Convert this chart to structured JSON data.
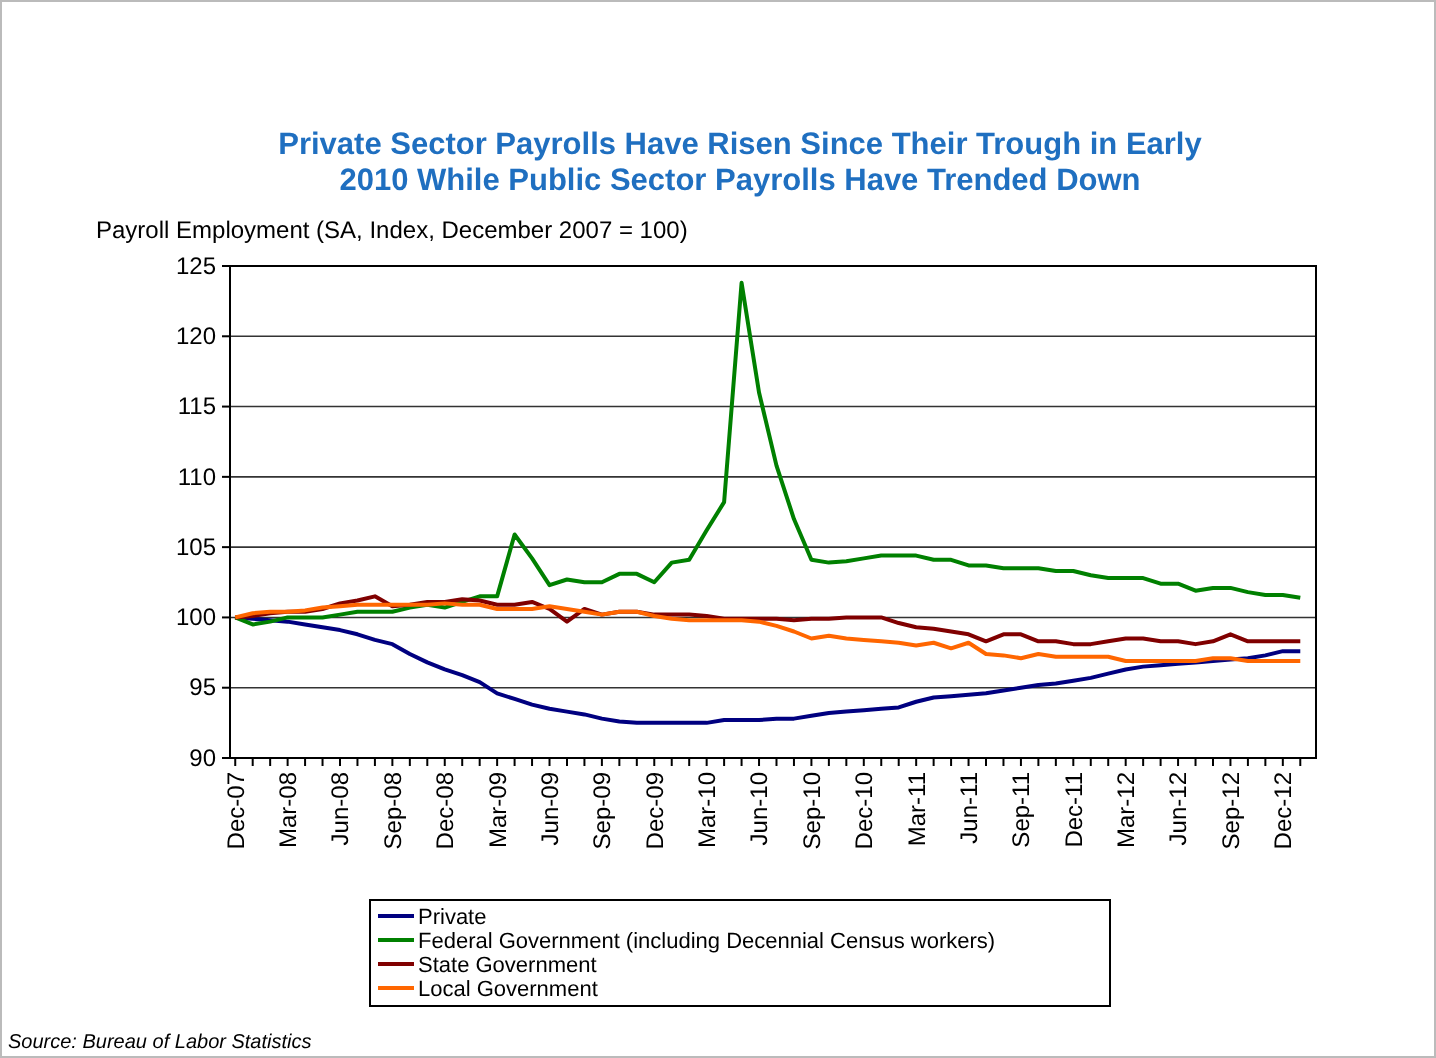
{
  "chart_data": {
    "type": "line",
    "title": "Private Sector Payrolls Have Risen Since Their Trough in Early 2010 While Public Sector Payrolls Have Trended Down",
    "ylabel": "Payroll Employment (SA, Index, December 2007 = 100)",
    "categories": [
      "Dec-07",
      null,
      null,
      "Mar-08",
      null,
      null,
      "Jun-08",
      null,
      null,
      "Sep-08",
      null,
      null,
      "Dec-08",
      null,
      null,
      "Mar-09",
      null,
      null,
      "Jun-09",
      null,
      null,
      "Sep-09",
      null,
      null,
      "Dec-09",
      null,
      null,
      "Mar-10",
      null,
      null,
      "Jun-10",
      null,
      null,
      "Sep-10",
      null,
      null,
      "Dec-10",
      null,
      null,
      "Mar-11",
      null,
      null,
      "Jun-11",
      null,
      null,
      "Sep-11",
      null,
      null,
      "Dec-11",
      null,
      null,
      "Mar-12",
      null,
      null,
      "Jun-12",
      null,
      null,
      "Sep-12",
      null,
      null,
      "Dec-12",
      null
    ],
    "series": [
      {
        "name": "Private",
        "color": "#000080",
        "values": [
          100,
          99.9,
          99.8,
          99.7,
          99.5,
          99.3,
          99.1,
          98.8,
          98.4,
          98.1,
          97.4,
          96.8,
          96.3,
          95.9,
          95.4,
          94.6,
          94.2,
          93.8,
          93.5,
          93.3,
          93.1,
          92.8,
          92.6,
          92.5,
          92.5,
          92.5,
          92.5,
          92.5,
          92.7,
          92.7,
          92.7,
          92.8,
          92.8,
          93.0,
          93.2,
          93.3,
          93.4,
          93.5,
          93.6,
          94.0,
          94.3,
          94.4,
          94.5,
          94.6,
          94.8,
          95.0,
          95.2,
          95.3,
          95.5,
          95.7,
          96.0,
          96.3,
          96.5,
          96.6,
          96.7,
          96.8,
          96.9,
          97.0,
          97.1,
          97.3,
          97.6,
          97.6
        ]
      },
      {
        "name": "Federal Government (including Decennial Census workers)",
        "color": "#008000",
        "values": [
          100,
          99.5,
          99.7,
          100.0,
          100.0,
          100.0,
          100.2,
          100.4,
          100.4,
          100.4,
          100.7,
          100.9,
          100.7,
          101.1,
          101.5,
          101.5,
          105.9,
          104.2,
          102.3,
          102.7,
          102.5,
          102.5,
          103.1,
          103.1,
          102.5,
          103.9,
          104.1,
          106.2,
          108.2,
          123.8,
          116.0,
          110.8,
          107.0,
          104.1,
          103.9,
          104.0,
          104.2,
          104.4,
          104.4,
          104.4,
          104.1,
          104.1,
          103.7,
          103.7,
          103.5,
          103.5,
          103.5,
          103.3,
          103.3,
          103.0,
          102.8,
          102.8,
          102.8,
          102.4,
          102.4,
          101.9,
          102.1,
          102.1,
          101.8,
          101.6,
          101.6,
          101.4
        ]
      },
      {
        "name": "State Government",
        "color": "#800000",
        "values": [
          100,
          100.1,
          100.3,
          100.4,
          100.4,
          100.6,
          101.0,
          101.2,
          101.5,
          100.8,
          100.9,
          101.1,
          101.1,
          101.3,
          101.2,
          100.9,
          100.9,
          101.1,
          100.6,
          99.7,
          100.6,
          100.2,
          100.4,
          100.4,
          100.2,
          100.2,
          100.2,
          100.1,
          99.9,
          99.9,
          99.9,
          99.9,
          99.8,
          99.9,
          99.9,
          100.0,
          100.0,
          100.0,
          99.6,
          99.3,
          99.2,
          99.0,
          98.8,
          98.3,
          98.8,
          98.8,
          98.3,
          98.3,
          98.1,
          98.1,
          98.3,
          98.5,
          98.5,
          98.3,
          98.3,
          98.1,
          98.3,
          98.8,
          98.3,
          98.3,
          98.3,
          98.3
        ]
      },
      {
        "name": "Local Government",
        "color": "#ff6600",
        "values": [
          100,
          100.3,
          100.4,
          100.4,
          100.5,
          100.7,
          100.8,
          100.9,
          100.9,
          100.9,
          100.9,
          100.9,
          101.0,
          100.9,
          100.9,
          100.6,
          100.6,
          100.6,
          100.8,
          100.6,
          100.4,
          100.2,
          100.4,
          100.4,
          100.1,
          99.9,
          99.8,
          99.8,
          99.8,
          99.8,
          99.7,
          99.4,
          99.0,
          98.5,
          98.7,
          98.5,
          98.4,
          98.3,
          98.2,
          98.0,
          98.2,
          97.8,
          98.2,
          97.4,
          97.3,
          97.1,
          97.4,
          97.2,
          97.2,
          97.2,
          97.2,
          96.9,
          96.9,
          96.9,
          96.9,
          96.9,
          97.1,
          97.1,
          96.9,
          96.9,
          96.9,
          96.9
        ]
      }
    ],
    "ylim": [
      90,
      125
    ],
    "yticks": [
      90,
      95,
      100,
      105,
      110,
      115,
      120,
      125
    ],
    "grid": "y",
    "legend": "bottom",
    "marker": "none",
    "line_style": "solid",
    "annotations": [
      "Source: Bureau of Labor Statistics"
    ]
  }
}
